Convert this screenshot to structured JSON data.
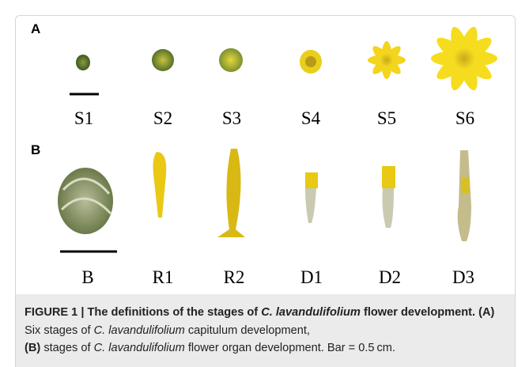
{
  "panel_a": {
    "label": "A",
    "stages": [
      "S1",
      "S2",
      "S3",
      "S4",
      "S5",
      "S6"
    ]
  },
  "panel_b": {
    "label": "B",
    "stages": [
      "B",
      "R1",
      "R2",
      "D1",
      "D2",
      "D3"
    ]
  },
  "caption": {
    "parts": [
      "FIGURE 1 | The definitions of the stages of ",
      "C. lavandulifolium",
      " flower development.",
      " (A)",
      " Six stages of ",
      "C. lavandulifolium",
      " capitulum development, ",
      "(B)",
      " stages of ",
      "C. lavandulifolium",
      " flower organ development. Bar = 0.5 cm."
    ]
  }
}
